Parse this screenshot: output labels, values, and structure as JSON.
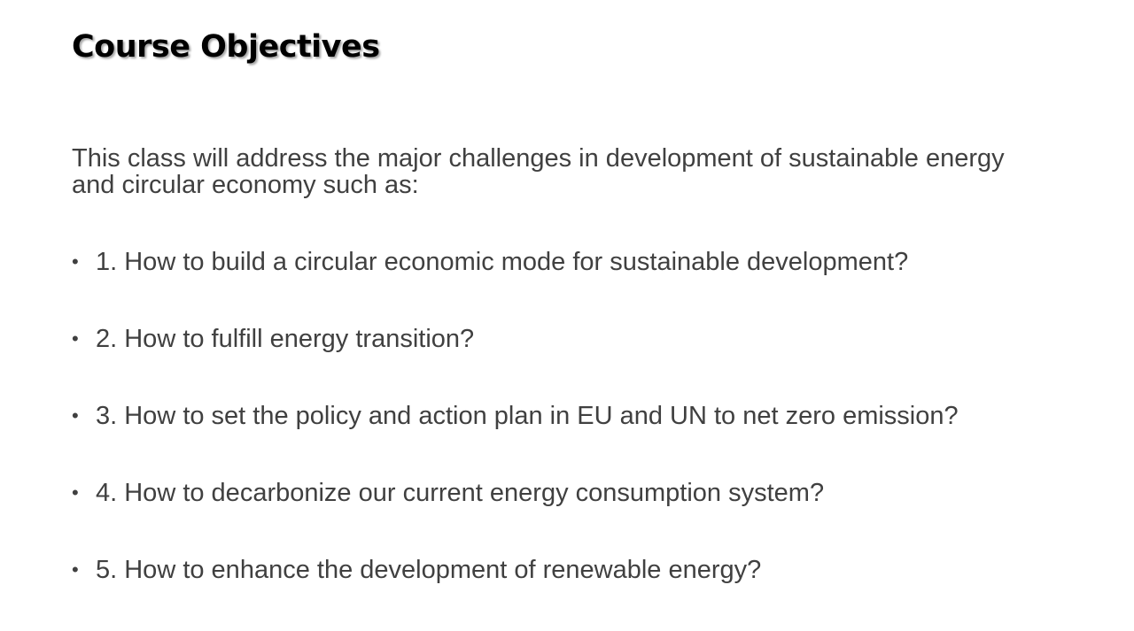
{
  "slide": {
    "title": "Course Objectives",
    "intro": "This class will address the major challenges in development of sustainable energy and circular economy such as:",
    "bullet_glyph": "•",
    "objectives": [
      "1. How to build a circular economic mode for sustainable development?",
      "2. How to fulfill energy transition?",
      "3. How to set the policy and action plan in EU and UN to net zero emission?",
      "4. How to decarbonize our current energy consumption system?",
      "5. How to enhance the development of renewable energy?"
    ]
  },
  "colors": {
    "title": "#000000",
    "body_text": "#404040",
    "background": "#ffffff"
  }
}
